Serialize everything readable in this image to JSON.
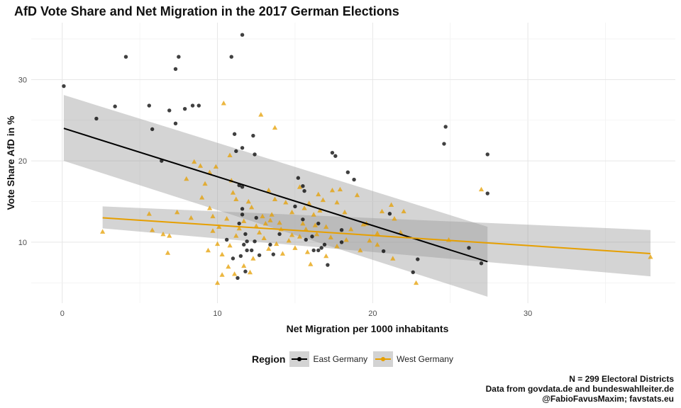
{
  "chart_data": {
    "type": "scatter",
    "title": "AfD Vote Share and Net Migration in the 2017 German Elections",
    "xlabel": "Net Migration per 1000 inhabitants",
    "ylabel": "Vote Share AfD in %",
    "xlim": [
      -2,
      39.5
    ],
    "ylim": [
      2.5,
      37
    ],
    "xticks": [
      0,
      10,
      20,
      30
    ],
    "yticks": [
      10,
      20,
      30
    ],
    "grid": true,
    "legend": {
      "title": "Region",
      "position": "bottom",
      "entries": [
        {
          "label": "East Germany",
          "color": "#000000"
        },
        {
          "label": "West Germany",
          "color": "#E69F00"
        }
      ]
    },
    "caption": [
      "N = 299 Electoral Districts",
      "Data from govdata.de and bundeswahlleiter.de",
      "@FabioFavusMaxim; favstats.eu"
    ],
    "series": [
      {
        "name": "East Germany",
        "color": "#000000",
        "marker": "circle",
        "points": [
          [
            0.1,
            29.2
          ],
          [
            2.2,
            25.2
          ],
          [
            3.4,
            26.7
          ],
          [
            4.1,
            32.8
          ],
          [
            5.6,
            26.8
          ],
          [
            5.8,
            23.9
          ],
          [
            6.4,
            20.0
          ],
          [
            6.9,
            26.2
          ],
          [
            7.3,
            24.6
          ],
          [
            7.3,
            31.3
          ],
          [
            7.5,
            32.8
          ],
          [
            7.9,
            26.4
          ],
          [
            8.4,
            26.8
          ],
          [
            8.8,
            26.8
          ],
          [
            10.9,
            32.8
          ],
          [
            11.6,
            35.5
          ],
          [
            11.1,
            23.3
          ],
          [
            11.2,
            21.2
          ],
          [
            11.6,
            21.6
          ],
          [
            12.3,
            23.1
          ],
          [
            12.4,
            20.8
          ],
          [
            11.4,
            17.0
          ],
          [
            11.6,
            16.8
          ],
          [
            12.5,
            13.0
          ],
          [
            11.6,
            14.1
          ],
          [
            11.6,
            13.4
          ],
          [
            11.4,
            12.3
          ],
          [
            11.8,
            11.0
          ],
          [
            11.9,
            10.1
          ],
          [
            12.4,
            10.1
          ],
          [
            11.7,
            9.7
          ],
          [
            11.9,
            9.0
          ],
          [
            12.2,
            9.0
          ],
          [
            12.7,
            8.4
          ],
          [
            11.5,
            8.3
          ],
          [
            11.0,
            8.0
          ],
          [
            11.3,
            5.6
          ],
          [
            11.8,
            6.4
          ],
          [
            10.6,
            10.3
          ],
          [
            13.4,
            9.7
          ],
          [
            13.6,
            8.5
          ],
          [
            14.0,
            11.0
          ],
          [
            15.0,
            14.4
          ],
          [
            15.2,
            17.9
          ],
          [
            15.6,
            16.3
          ],
          [
            15.5,
            16.9
          ],
          [
            15.5,
            12.8
          ],
          [
            15.7,
            10.3
          ],
          [
            16.1,
            10.7
          ],
          [
            16.2,
            9.0
          ],
          [
            16.5,
            9.0
          ],
          [
            16.5,
            12.3
          ],
          [
            16.7,
            9.3
          ],
          [
            16.9,
            9.7
          ],
          [
            17.1,
            7.2
          ],
          [
            17.4,
            21.0
          ],
          [
            17.6,
            20.6
          ],
          [
            18.0,
            11.5
          ],
          [
            18.0,
            10.0
          ],
          [
            18.4,
            18.6
          ],
          [
            18.8,
            17.7
          ],
          [
            20.7,
            8.9
          ],
          [
            21.1,
            13.5
          ],
          [
            22.6,
            6.3
          ],
          [
            22.9,
            7.9
          ],
          [
            24.6,
            22.1
          ],
          [
            24.7,
            24.2
          ],
          [
            26.2,
            9.3
          ],
          [
            27.0,
            7.4
          ],
          [
            27.4,
            20.8
          ],
          [
            27.4,
            16.0
          ]
        ]
      },
      {
        "name": "West Germany",
        "color": "#E69F00",
        "marker": "triangle",
        "points": [
          [
            2.6,
            11.3
          ],
          [
            5.6,
            13.5
          ],
          [
            5.8,
            11.5
          ],
          [
            6.5,
            11.0
          ],
          [
            6.9,
            10.8
          ],
          [
            6.8,
            8.7
          ],
          [
            8.0,
            17.8
          ],
          [
            8.5,
            19.9
          ],
          [
            8.9,
            19.4
          ],
          [
            7.4,
            13.7
          ],
          [
            8.3,
            13.0
          ],
          [
            9.0,
            15.5
          ],
          [
            9.2,
            17.2
          ],
          [
            9.5,
            18.6
          ],
          [
            9.9,
            19.3
          ],
          [
            9.5,
            14.2
          ],
          [
            9.7,
            13.2
          ],
          [
            10.1,
            11.9
          ],
          [
            10.4,
            27.1
          ],
          [
            10.8,
            20.7
          ],
          [
            10.9,
            17.6
          ],
          [
            11.0,
            16.1
          ],
          [
            11.2,
            15.3
          ],
          [
            11.4,
            11.7
          ],
          [
            11.7,
            12.6
          ],
          [
            12.0,
            15.0
          ],
          [
            12.2,
            14.3
          ],
          [
            12.5,
            12.0
          ],
          [
            12.8,
            25.7
          ],
          [
            12.9,
            13.2
          ],
          [
            13.1,
            12.3
          ],
          [
            13.3,
            16.4
          ],
          [
            13.4,
            12.7
          ],
          [
            13.7,
            24.1
          ],
          [
            13.7,
            15.3
          ],
          [
            14.0,
            12.4
          ],
          [
            14.4,
            14.9
          ],
          [
            14.8,
            13.7
          ],
          [
            15.3,
            16.8
          ],
          [
            15.5,
            12.3
          ],
          [
            15.6,
            14.2
          ],
          [
            15.9,
            14.8
          ],
          [
            16.2,
            13.4
          ],
          [
            16.5,
            15.9
          ],
          [
            16.6,
            13.9
          ],
          [
            16.8,
            15.2
          ],
          [
            17.0,
            11.9
          ],
          [
            17.4,
            16.4
          ],
          [
            17.7,
            14.9
          ],
          [
            17.9,
            16.5
          ],
          [
            18.2,
            13.7
          ],
          [
            18.6,
            11.6
          ],
          [
            19.0,
            15.8
          ],
          [
            19.4,
            12.2
          ],
          [
            19.6,
            12.3
          ],
          [
            20.3,
            11.1
          ],
          [
            20.6,
            13.8
          ],
          [
            21.2,
            14.6
          ],
          [
            21.4,
            12.9
          ],
          [
            21.8,
            11.2
          ],
          [
            22.0,
            13.8
          ],
          [
            21.3,
            8.0
          ],
          [
            22.8,
            5.0
          ],
          [
            10.0,
            5.0
          ],
          [
            10.3,
            6.0
          ],
          [
            10.7,
            7.0
          ],
          [
            11.1,
            6.1
          ],
          [
            11.7,
            7.1
          ],
          [
            12.1,
            6.3
          ],
          [
            12.3,
            8.0
          ],
          [
            9.4,
            9.0
          ],
          [
            10.0,
            9.8
          ],
          [
            10.3,
            8.5
          ],
          [
            10.8,
            9.6
          ],
          [
            11.2,
            10.8
          ],
          [
            13.0,
            10.5
          ],
          [
            13.3,
            9.2
          ],
          [
            13.8,
            9.8
          ],
          [
            14.2,
            8.6
          ],
          [
            14.6,
            10.2
          ],
          [
            15.0,
            9.3
          ],
          [
            15.3,
            10.7
          ],
          [
            15.8,
            8.8
          ],
          [
            16.0,
            7.3
          ],
          [
            16.4,
            11.0
          ],
          [
            17.0,
            8.3
          ],
          [
            17.7,
            9.5
          ],
          [
            18.3,
            10.3
          ],
          [
            19.2,
            9.0
          ],
          [
            19.8,
            10.2
          ],
          [
            20.3,
            9.7
          ],
          [
            24.9,
            10.3
          ],
          [
            27.0,
            16.5
          ],
          [
            37.9,
            8.2
          ],
          [
            9.7,
            11.4
          ],
          [
            10.6,
            12.9
          ],
          [
            12.7,
            11.2
          ],
          [
            13.5,
            13.4
          ],
          [
            14.1,
            11.6
          ],
          [
            14.8,
            10.9
          ],
          [
            15.7,
            11.6
          ],
          [
            16.3,
            12.1
          ],
          [
            17.3,
            10.6
          ]
        ]
      }
    ],
    "trends": [
      {
        "name": "East Germany",
        "color": "#000000",
        "x": [
          0.1,
          27.4
        ],
        "y": [
          24.0,
          7.6
        ],
        "ci_lower": [
          20.0,
          3.3
        ],
        "ci_upper": [
          28.1,
          11.9
        ]
      },
      {
        "name": "West Germany",
        "color": "#E69F00",
        "x": [
          2.6,
          37.9
        ],
        "y": [
          13.0,
          8.6
        ],
        "ci_lower": [
          11.7,
          5.8
        ],
        "ci_upper": [
          14.4,
          11.5
        ]
      }
    ]
  }
}
